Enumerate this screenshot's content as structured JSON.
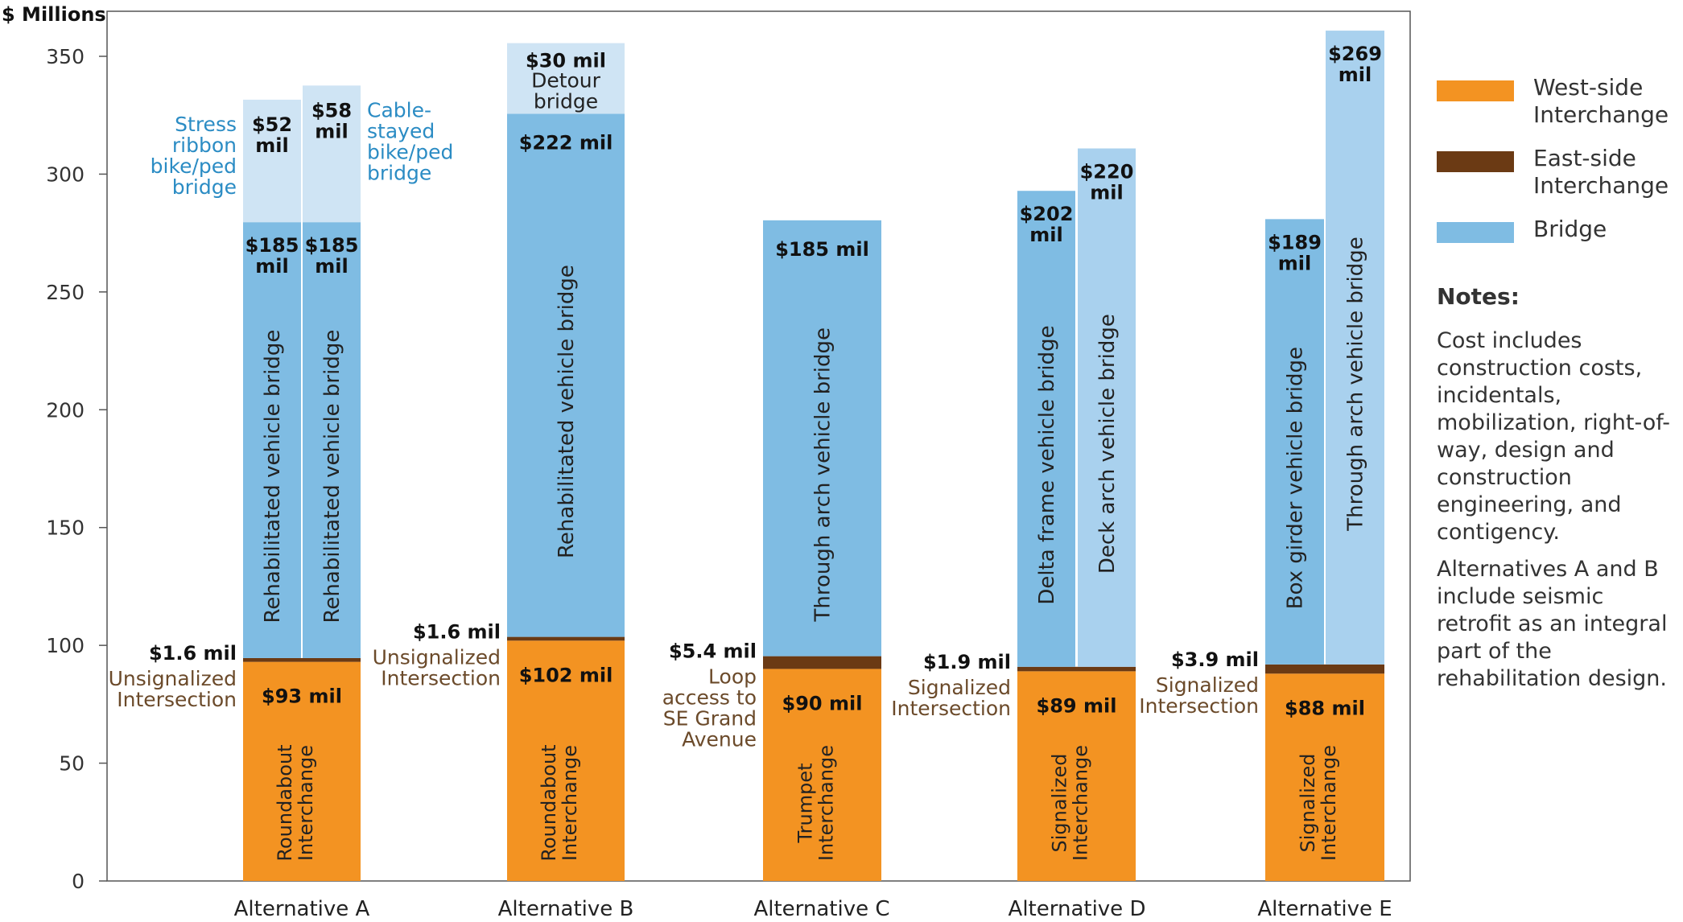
{
  "colors": {
    "west": "#F39322",
    "east": "#6B3A14",
    "bridge": "#7FBCE3",
    "bridge_upper": "#A9D1EE",
    "ped_bridge": "#CFE4F4",
    "ped_label": "#2B8CC4",
    "left_label": "#6B4A2A",
    "axis": "#555555",
    "text": "#222222"
  },
  "legend": {
    "items": [
      {
        "label": "West-side Interchange",
        "color": "#F39322"
      },
      {
        "label": "East-side Interchange",
        "color": "#6B3A14"
      },
      {
        "label": "Bridge",
        "color": "#7FBCE3"
      }
    ]
  },
  "notes": {
    "title": "Notes:",
    "items": [
      "Cost includes construction costs, incidentals, mobilization, right-of-way, design and construction engineering, and contigency.",
      "Alternatives A and B include seismic retrofit as an integral part of the rehabilitation design."
    ]
  },
  "chart_data": {
    "type": "bar",
    "stacked": true,
    "ylabel": "$ Millions",
    "ylim": [
      0,
      360
    ],
    "yticks": [
      0,
      50,
      100,
      150,
      200,
      250,
      300,
      350
    ],
    "grid": false,
    "legend_position": "right",
    "series_names": [
      "West-side Interchange",
      "East-side Interchange",
      "Bridge"
    ],
    "groups": [
      {
        "name": "Alternative A",
        "interchange": {
          "west": 93,
          "west_label": "$93 mil",
          "west_desc": [
            "Roundabout",
            "Interchange"
          ],
          "east": 1.6,
          "east_label": "$1.6 mil",
          "east_desc": [
            "Unsignalized",
            "Intersection"
          ]
        },
        "bridges": [
          {
            "value": 185,
            "label": [
              "$185",
              "mil"
            ],
            "desc": "Rehabilitated vehicle bridge",
            "color_key": "bridge",
            "ped": {
              "value": 52,
              "label": [
                "$52",
                "mil"
              ],
              "desc": [
                "Stress",
                "ribbon",
                "bike/ped",
                "bridge"
              ],
              "side": "left",
              "color_key": "ped_bridge"
            }
          },
          {
            "value": 185,
            "label": [
              "$185",
              "mil"
            ],
            "desc": "Rehabilitated vehicle bridge",
            "color_key": "bridge",
            "ped": {
              "value": 58,
              "label": [
                "$58",
                "mil"
              ],
              "desc": [
                "Cable-",
                "stayed",
                "bike/ped",
                "bridge"
              ],
              "side": "right",
              "color_key": "ped_bridge"
            }
          }
        ]
      },
      {
        "name": "Alternative B",
        "interchange": {
          "west": 102,
          "west_label": "$102 mil",
          "west_desc": [
            "Roundabout",
            "Interchange"
          ],
          "east": 1.6,
          "east_label": "$1.6 mil",
          "east_desc": [
            "Unsignalized",
            "Intersection"
          ]
        },
        "bridges": [
          {
            "value": 222,
            "label": [
              "$222 mil"
            ],
            "desc": "Rehabilitated vehicle bridge",
            "color_key": "bridge",
            "ped": {
              "value": 30,
              "label": [
                "$30 mil",
                "Detour",
                "bridge"
              ],
              "desc": [],
              "side": "inside",
              "color_key": "ped_bridge"
            }
          }
        ]
      },
      {
        "name": "Alternative C",
        "interchange": {
          "west": 90,
          "west_label": "$90 mil",
          "west_desc": [
            "Trumpet",
            "Interchange"
          ],
          "east": 5.4,
          "east_label": "$5.4 mil",
          "east_desc": [
            "Loop",
            "access to",
            "SE Grand",
            "Avenue"
          ]
        },
        "bridges": [
          {
            "value": 185,
            "label": [
              "$185 mil"
            ],
            "desc": "Through arch vehicle bridge",
            "color_key": "bridge",
            "ped": null
          }
        ]
      },
      {
        "name": "Alternative D",
        "interchange": {
          "west": 89,
          "west_label": "$89 mil",
          "west_desc": [
            "Signalized",
            "Interchange"
          ],
          "east": 1.9,
          "east_label": "$1.9 mil",
          "east_desc": [
            "Signalized",
            "Intersection"
          ]
        },
        "bridges": [
          {
            "value": 202,
            "label": [
              "$202",
              "mil"
            ],
            "desc": "Delta frame vehicle bridge",
            "color_key": "bridge",
            "ped": null
          },
          {
            "value": 220,
            "label": [
              "$220",
              "mil"
            ],
            "desc": "Deck arch vehicle bridge",
            "color_key": "bridge_upper",
            "ped": null
          }
        ]
      },
      {
        "name": "Alternative E",
        "interchange": {
          "west": 88,
          "west_label": "$88 mil",
          "west_desc": [
            "Signalized",
            "Interchange"
          ],
          "east": 3.9,
          "east_label": "$3.9 mil",
          "east_desc": [
            "Signalized",
            "Intersection"
          ]
        },
        "bridges": [
          {
            "value": 189,
            "label": [
              "$189",
              "mil"
            ],
            "desc": "Box girder vehicle bridge",
            "color_key": "bridge",
            "ped": null
          },
          {
            "value": 269,
            "label": [
              "$269",
              "mil"
            ],
            "desc": "Through arch vehicle bridge",
            "color_key": "bridge_upper",
            "ped": null
          }
        ]
      }
    ]
  }
}
